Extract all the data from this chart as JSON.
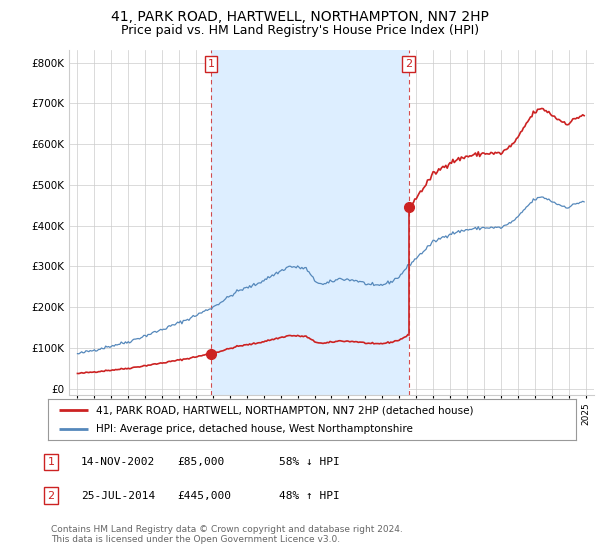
{
  "title": "41, PARK ROAD, HARTWELL, NORTHAMPTON, NN7 2HP",
  "subtitle": "Price paid vs. HM Land Registry's House Price Index (HPI)",
  "title_fontsize": 10,
  "subtitle_fontsize": 9,
  "hpi_color": "#5588bb",
  "hpi_fill_color": "#ddeeff",
  "price_color": "#cc2222",
  "background_color": "#ffffff",
  "grid_color": "#cccccc",
  "ylabel_values": [
    0,
    100000,
    200000,
    300000,
    400000,
    500000,
    600000,
    700000,
    800000
  ],
  "ylabel_labels": [
    "£0",
    "£100K",
    "£200K",
    "£300K",
    "£400K",
    "£500K",
    "£600K",
    "£700K",
    "£800K"
  ],
  "xmin": 1994.5,
  "xmax": 2025.5,
  "ymin": -15000,
  "ymax": 830000,
  "transaction1_year": 2002.88,
  "transaction1_price": 85000,
  "transaction2_year": 2014.55,
  "transaction2_price": 445000,
  "legend_entries": [
    "41, PARK ROAD, HARTWELL, NORTHAMPTON, NN7 2HP (detached house)",
    "HPI: Average price, detached house, West Northamptonshire"
  ],
  "table_rows": [
    {
      "num": "1",
      "date": "14-NOV-2002",
      "price": "£85,000",
      "change": "58% ↓ HPI"
    },
    {
      "num": "2",
      "date": "25-JUL-2014",
      "price": "£445,000",
      "change": "48% ↑ HPI"
    }
  ],
  "footnote": "Contains HM Land Registry data © Crown copyright and database right 2024.\nThis data is licensed under the Open Government Licence v3.0."
}
